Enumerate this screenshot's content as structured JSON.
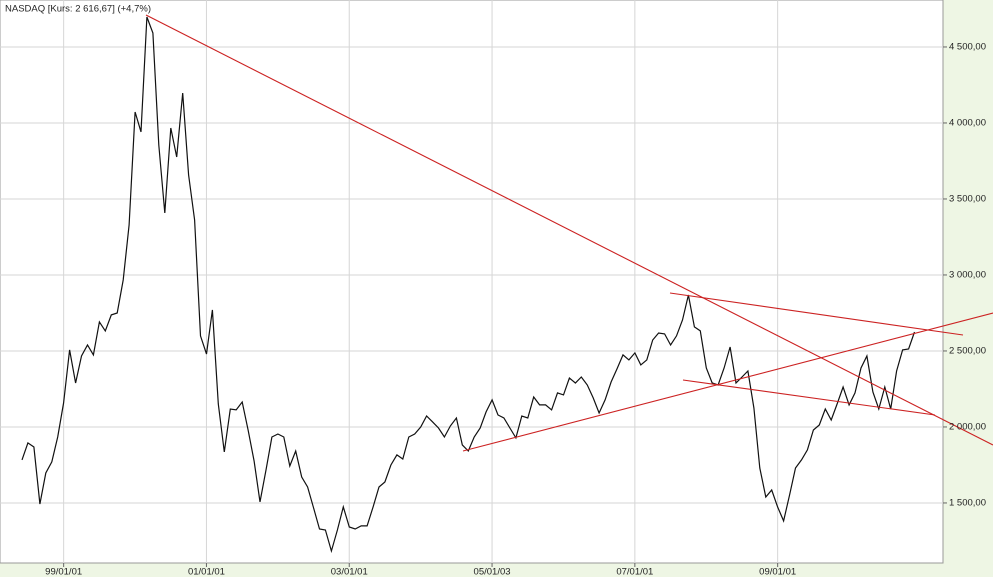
{
  "chart_data": {
    "type": "line",
    "title": "NASDAQ [Kurs: 2 616,67] (+4,7%)",
    "color": "#111111",
    "categories": [
      null,
      null,
      null,
      null,
      null,
      null,
      null,
      "99/01/01",
      null,
      null,
      null,
      null,
      null,
      null,
      null,
      null,
      null,
      null,
      null,
      null,
      null,
      null,
      null,
      null,
      null,
      null,
      null,
      null,
      null,
      null,
      null,
      "01/01/01",
      null,
      null,
      null,
      null,
      null,
      null,
      null,
      null,
      null,
      null,
      null,
      null,
      null,
      null,
      null,
      null,
      null,
      null,
      null,
      null,
      null,
      null,
      null,
      "03/01/01",
      null,
      null,
      null,
      null,
      null,
      null,
      null,
      null,
      null,
      null,
      null,
      null,
      null,
      null,
      null,
      null,
      null,
      null,
      null,
      null,
      null,
      null,
      null,
      "05/01/03",
      null,
      null,
      null,
      null,
      null,
      null,
      null,
      null,
      null,
      null,
      null,
      null,
      null,
      null,
      null,
      null,
      null,
      null,
      null,
      null,
      null,
      null,
      null,
      "07/01/01",
      null,
      null,
      null,
      null,
      null,
      null,
      null,
      null,
      null,
      null,
      null,
      null,
      null,
      null,
      null,
      null,
      null,
      null,
      null,
      null,
      null,
      null,
      null,
      "09/01/01",
      null,
      null,
      null,
      null,
      null,
      null,
      null,
      null,
      null,
      null,
      null,
      null,
      null,
      null,
      null,
      null,
      null,
      null,
      null,
      null,
      null,
      null,
      null
    ],
    "values": [
      1783,
      1895,
      1868,
      1493,
      1697,
      1770,
      1934,
      2158,
      2507,
      2289,
      2467,
      2539,
      2474,
      2691,
      2632,
      2737,
      2750,
      2967,
      3329,
      4072,
      3941,
      4697,
      4592,
      3855,
      3408,
      3967,
      3776,
      4197,
      3658,
      3362,
      2599,
      2480,
      2770,
      2151,
      1836,
      2118,
      2112,
      2164,
      1980,
      1776,
      1507,
      1717,
      1934,
      1954,
      1934,
      1743,
      1842,
      1671,
      1605,
      1467,
      1329,
      1322,
      1184,
      1322,
      1474,
      1342,
      1329,
      1349,
      1349,
      1474,
      1605,
      1638,
      1750,
      1816,
      1789,
      1934,
      1954,
      2000,
      2072,
      2033,
      1993,
      1934,
      2007,
      2059,
      1882,
      1842,
      1934,
      1993,
      2099,
      2178,
      2079,
      2059,
      1993,
      1928,
      2072,
      2059,
      2197,
      2145,
      2145,
      2112,
      2224,
      2211,
      2322,
      2289,
      2329,
      2276,
      2191,
      2092,
      2178,
      2296,
      2382,
      2474,
      2441,
      2487,
      2408,
      2441,
      2572,
      2618,
      2612,
      2539,
      2599,
      2704,
      2868,
      2658,
      2632,
      2388,
      2289,
      2276,
      2388,
      2526,
      2289,
      2329,
      2368,
      2125,
      1730,
      1539,
      1585,
      1474,
      1382,
      1553,
      1730,
      1783,
      1849,
      1980,
      2013,
      2118,
      2046,
      2151,
      2263,
      2145,
      2224,
      2388,
      2467,
      2230,
      2118,
      2263,
      2118,
      2368,
      2507,
      2513,
      2625
    ],
    "ylim": [
      1105,
      4809
    ],
    "yticks": [
      {
        "value": 1500,
        "label": "1 500,00"
      },
      {
        "value": 2000,
        "label": "2 000,00"
      },
      {
        "value": 2500,
        "label": "2 500,00"
      },
      {
        "value": 3000,
        "label": "3 000,00"
      },
      {
        "value": 3500,
        "label": "3 500,00"
      },
      {
        "value": 4000,
        "label": "4 000,00"
      },
      {
        "value": 4500,
        "label": "4 500,00"
      }
    ],
    "grid": true
  }
}
